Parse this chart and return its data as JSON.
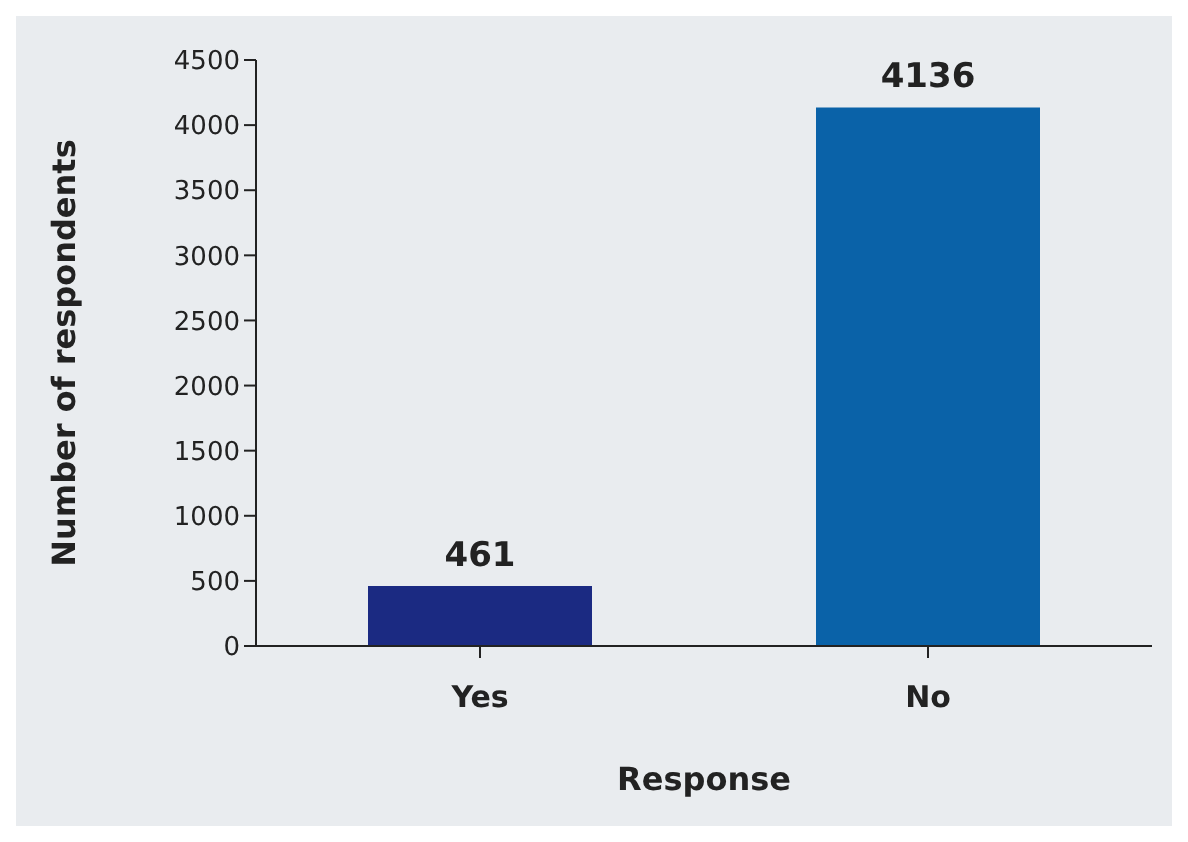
{
  "chart_data": {
    "type": "bar",
    "xlabel": "Response",
    "ylabel": "Number of respondents",
    "categories": [
      "Yes",
      "No"
    ],
    "values": [
      461,
      4136
    ],
    "colors": [
      "#1b2a82",
      "#0a62a8"
    ],
    "ylim": [
      0,
      4500
    ],
    "yticks": [
      0,
      500,
      1000,
      1500,
      2000,
      2500,
      3000,
      3500,
      4000,
      4500
    ],
    "data_labels": true,
    "grid": false,
    "legend": false
  }
}
